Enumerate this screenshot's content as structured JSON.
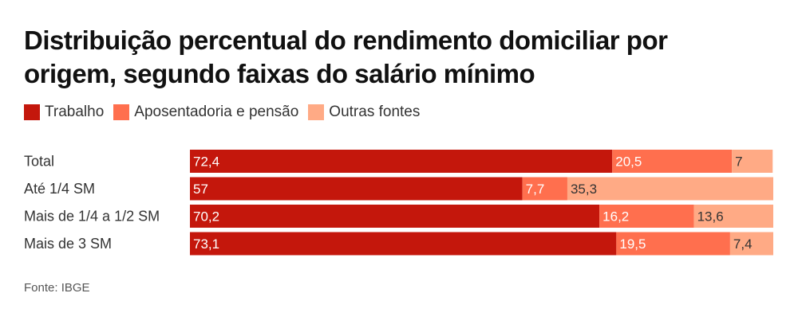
{
  "title": "Distribuição percentual do rendimento domiciliar por origem, segundo faixas do salário mínimo",
  "source": "Fonte: IBGE",
  "colors": {
    "trabalho": "#c4170c",
    "aposentadoria": "#ff6f4e",
    "outras": "#ffaa85"
  },
  "chart_data": {
    "type": "bar",
    "orientation": "horizontal",
    "stacked": true,
    "title": "Distribuição percentual do rendimento domiciliar por origem, segundo faixas do salário mínimo",
    "legend_position": "top-left",
    "grid": false,
    "xlim": [
      0,
      100
    ],
    "categories": [
      "Total",
      "Até 1/4 SM",
      "Mais de 1/4 a 1/2 SM",
      "Mais de 3 SM"
    ],
    "series": [
      {
        "name": "Trabalho",
        "color": "#c4170c",
        "values": [
          72.4,
          57,
          70.2,
          73.1
        ],
        "labels": [
          "72,4",
          "57",
          "70,2",
          "73,1"
        ],
        "label_color": "#ffffff"
      },
      {
        "name": "Aposentadoria e pensão",
        "color": "#ff6f4e",
        "values": [
          20.5,
          7.7,
          16.2,
          19.5
        ],
        "labels": [
          "20,5",
          "7,7",
          "16,2",
          "19,5"
        ],
        "label_color": "#ffffff"
      },
      {
        "name": "Outras fontes",
        "color": "#ffaa85",
        "values": [
          7,
          35.3,
          13.6,
          7.4
        ],
        "labels": [
          "7",
          "35,3",
          "13,6",
          "7,4"
        ],
        "label_color": "#333333"
      }
    ]
  }
}
